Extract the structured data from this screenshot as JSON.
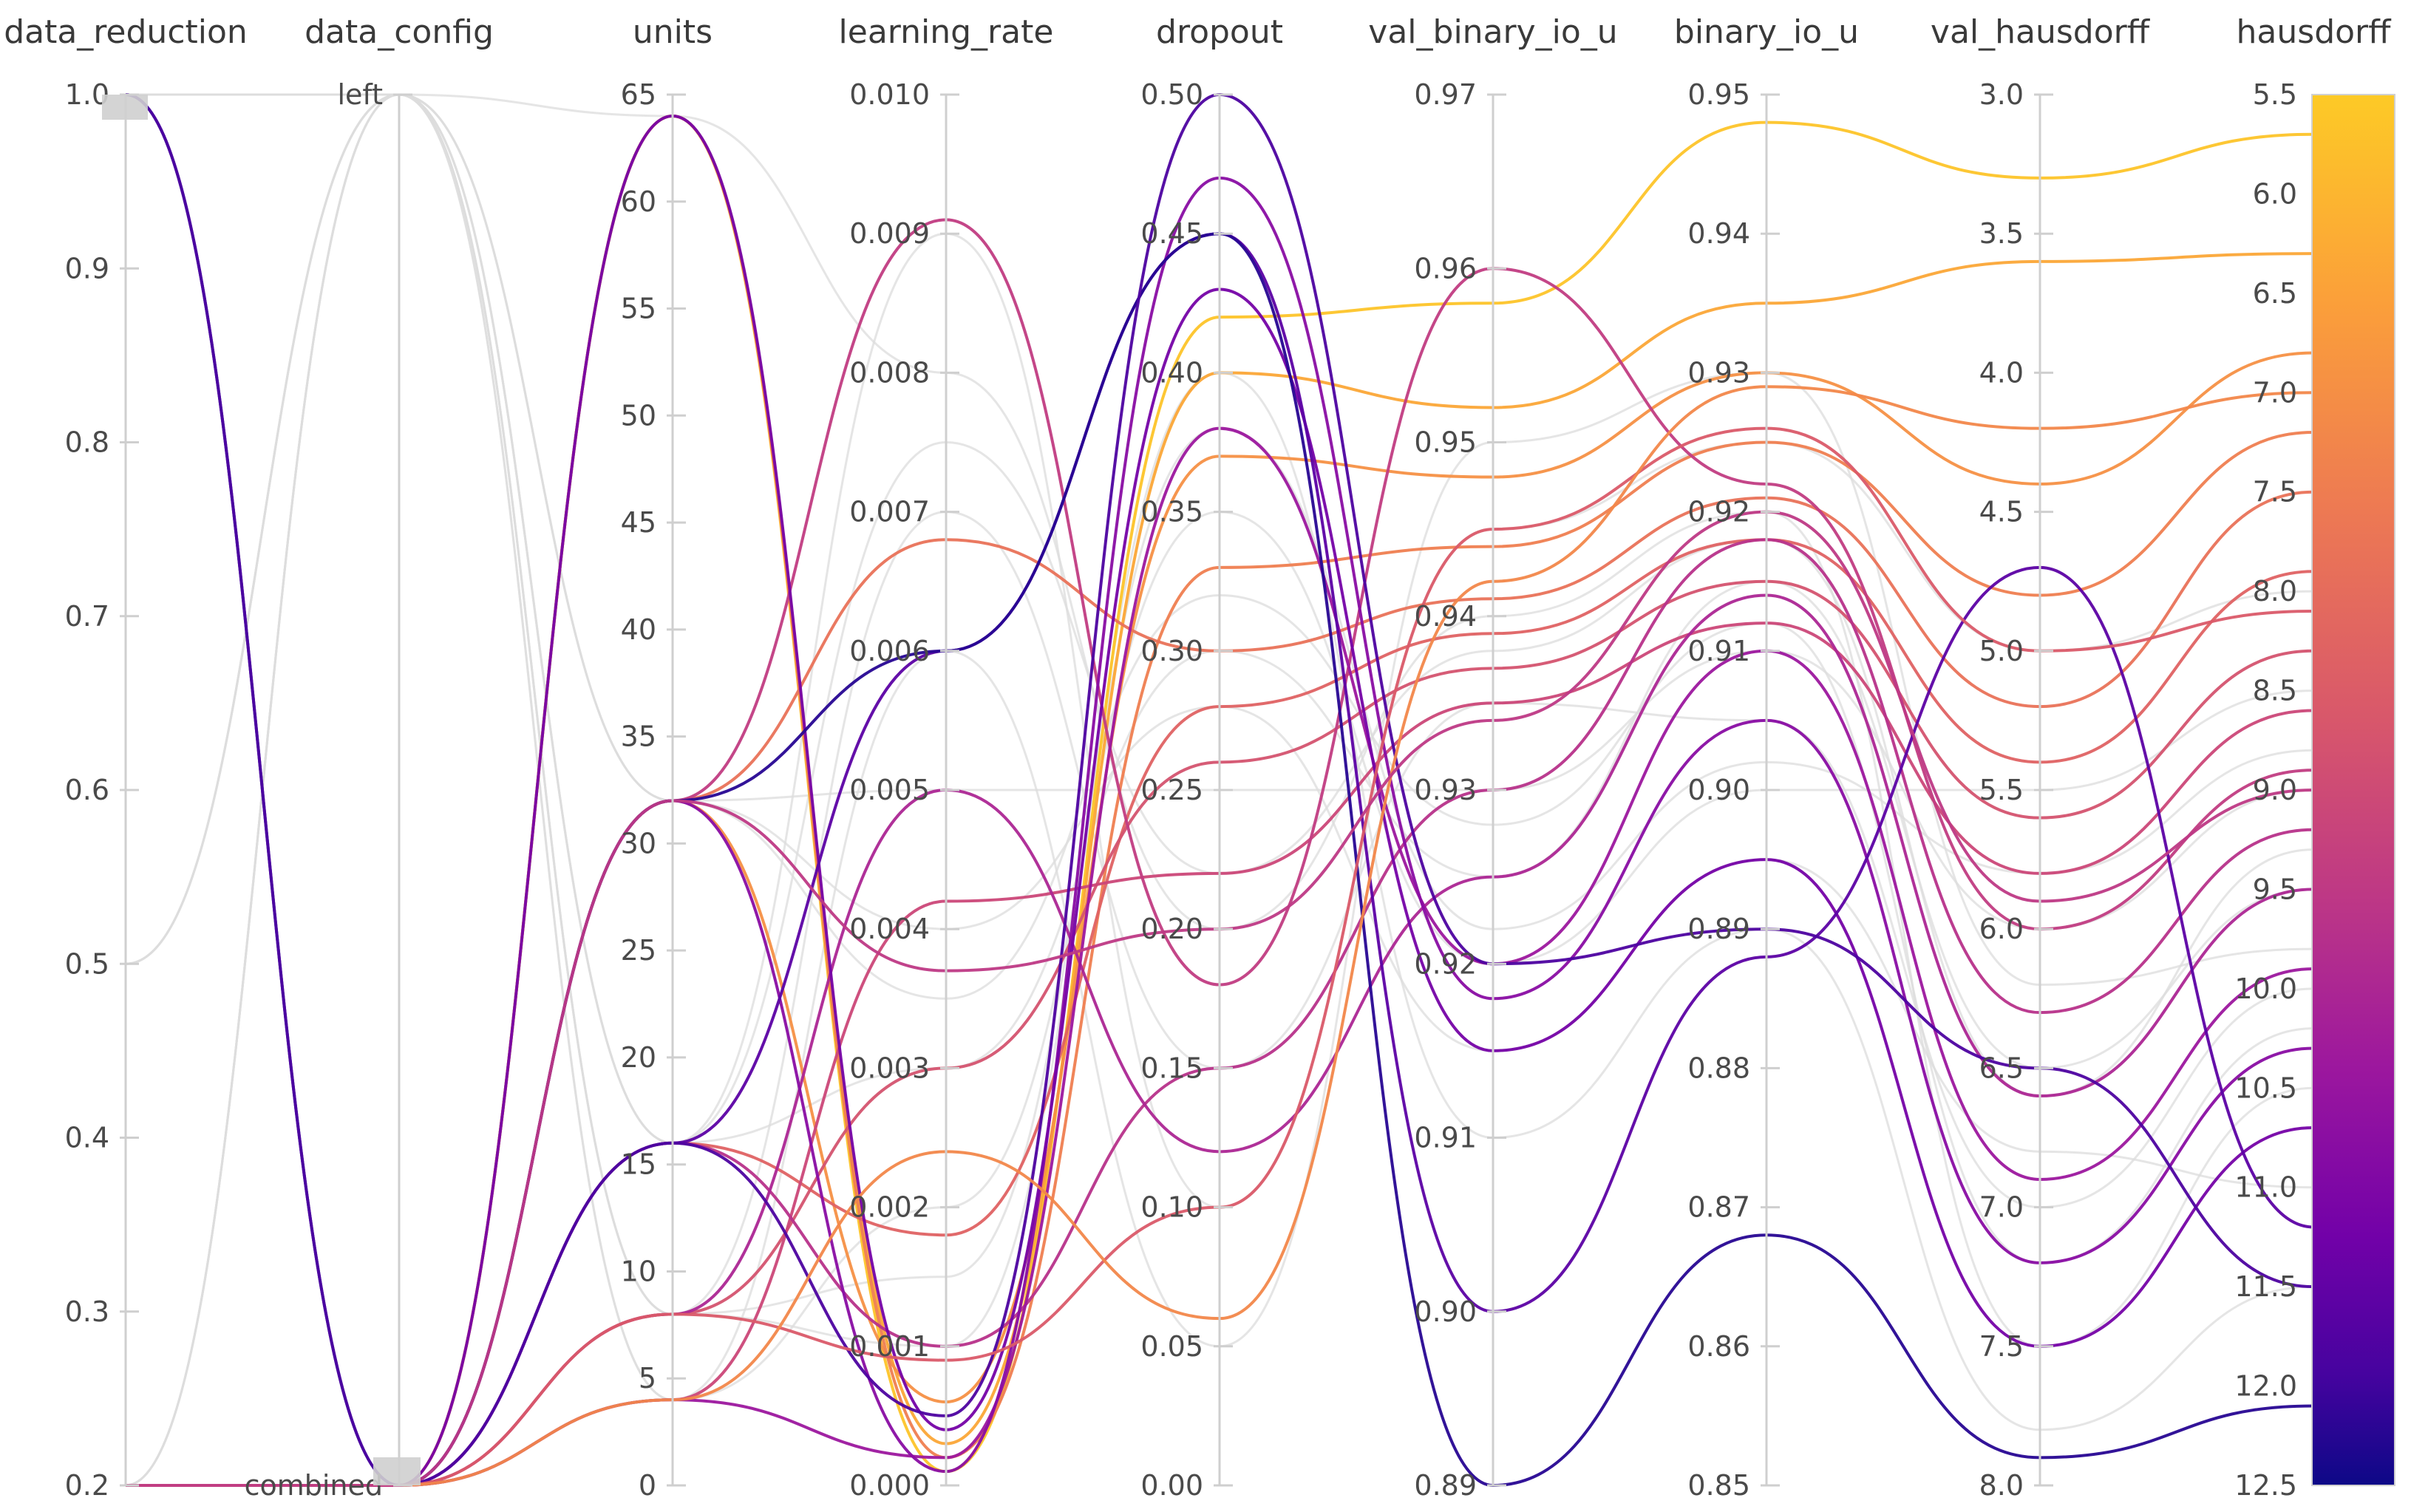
{
  "chart_data": {
    "type": "parallel-coordinates",
    "title": "",
    "color_metric": "hausdorff",
    "colorscale": [
      "#0d0887",
      "#46039f",
      "#7201a8",
      "#9c179e",
      "#bd3786",
      "#d8576b",
      "#ed7953",
      "#fb9f3a",
      "#fdca26",
      "#f0f921"
    ],
    "axes": [
      {
        "name": "data_reduction",
        "ticks": [
          "1.0",
          "0.9",
          "0.8",
          "0.7",
          "0.6",
          "0.5",
          "0.4",
          "0.3",
          "0.2"
        ],
        "range": [
          0.2,
          1.0
        ]
      },
      {
        "name": "data_config",
        "ticks": [
          "left",
          "combined"
        ],
        "categorical": true
      },
      {
        "name": "units",
        "ticks": [
          "65",
          "60",
          "55",
          "50",
          "45",
          "40",
          "35",
          "30",
          "25",
          "20",
          "15",
          "10",
          "5",
          "0"
        ],
        "range": [
          0,
          65
        ]
      },
      {
        "name": "learning_rate",
        "ticks": [
          "0.010",
          "0.009",
          "0.008",
          "0.007",
          "0.006",
          "0.005",
          "0.004",
          "0.003",
          "0.002",
          "0.001",
          "0.000"
        ],
        "range": [
          0.0,
          0.01
        ]
      },
      {
        "name": "dropout",
        "ticks": [
          "0.50",
          "0.45",
          "0.40",
          "0.35",
          "0.30",
          "0.25",
          "0.20",
          "0.15",
          "0.10",
          "0.05",
          "0.00"
        ],
        "range": [
          0.0,
          0.5
        ]
      },
      {
        "name": "val_binary_io_u",
        "ticks": [
          "0.97",
          "0.96",
          "0.95",
          "0.94",
          "0.93",
          "0.92",
          "0.91",
          "0.90",
          "0.89"
        ],
        "range": [
          0.89,
          0.97
        ]
      },
      {
        "name": "binary_io_u",
        "ticks": [
          "0.95",
          "0.94",
          "0.93",
          "0.92",
          "0.91",
          "0.90",
          "0.89",
          "0.88",
          "0.87",
          "0.86",
          "0.85"
        ],
        "range": [
          0.85,
          0.95
        ]
      },
      {
        "name": "val_hausdorff",
        "ticks": [
          "3.0",
          "3.5",
          "4.0",
          "4.5",
          "5.0",
          "5.5",
          "6.0",
          "6.5",
          "7.0",
          "7.5",
          "8.0"
        ],
        "range": [
          3.0,
          8.0
        ],
        "inverted": true
      },
      {
        "name": "hausdorff",
        "ticks": [
          "5.5",
          "6.0",
          "6.5",
          "7.0",
          "7.5",
          "8.0",
          "8.5",
          "9.0",
          "9.5",
          "10.0",
          "10.5",
          "11.0",
          "11.5",
          "12.0",
          "12.5"
        ],
        "range": [
          5.5,
          12.5
        ],
        "inverted": true
      }
    ],
    "runs": [
      {
        "data_reduction": 0.2,
        "data_config": "combined",
        "units": 64,
        "learning_rate": 0.0001,
        "dropout": 0.42,
        "val_binary_io_u": 0.958,
        "binary_io_u": 0.948,
        "val_hausdorff": 3.3,
        "hausdorff": 5.7
      },
      {
        "data_reduction": 0.2,
        "data_config": "combined",
        "units": 64,
        "learning_rate": 0.0003,
        "dropout": 0.4,
        "val_binary_io_u": 0.952,
        "binary_io_u": 0.935,
        "val_hausdorff": 3.6,
        "hausdorff": 6.3
      },
      {
        "data_reduction": 0.2,
        "data_config": "combined",
        "units": 32,
        "learning_rate": 0.0006,
        "dropout": 0.37,
        "val_binary_io_u": 0.948,
        "binary_io_u": 0.93,
        "val_hausdorff": 4.4,
        "hausdorff": 6.8
      },
      {
        "data_reduction": 0.2,
        "data_config": "combined",
        "units": 64,
        "learning_rate": 0.0002,
        "dropout": 0.33,
        "val_binary_io_u": 0.944,
        "binary_io_u": 0.925,
        "val_hausdorff": 4.8,
        "hausdorff": 7.2
      },
      {
        "data_reduction": 0.2,
        "data_config": "combined",
        "units": 32,
        "learning_rate": 0.0068,
        "dropout": 0.3,
        "val_binary_io_u": 0.941,
        "binary_io_u": 0.921,
        "val_hausdorff": 5.2,
        "hausdorff": 7.5
      },
      {
        "data_reduction": 0.2,
        "data_config": "combined",
        "units": 16,
        "learning_rate": 0.0018,
        "dropout": 0.28,
        "val_binary_io_u": 0.939,
        "binary_io_u": 0.918,
        "val_hausdorff": 5.4,
        "hausdorff": 7.9
      },
      {
        "data_reduction": 0.2,
        "data_config": "combined",
        "units": 8,
        "learning_rate": 0.003,
        "dropout": 0.26,
        "val_binary_io_u": 0.937,
        "binary_io_u": 0.915,
        "val_hausdorff": 5.6,
        "hausdorff": 8.3
      },
      {
        "data_reduction": 0.2,
        "data_config": "combined",
        "units": 4,
        "learning_rate": 0.0042,
        "dropout": 0.22,
        "val_binary_io_u": 0.935,
        "binary_io_u": 0.912,
        "val_hausdorff": 5.8,
        "hausdorff": 8.6
      },
      {
        "data_reduction": 0.2,
        "data_config": "combined",
        "units": 32,
        "learning_rate": 0.0091,
        "dropout": 0.18,
        "val_binary_io_u": 0.96,
        "binary_io_u": 0.922,
        "val_hausdorff": 6.0,
        "hausdorff": 8.9
      },
      {
        "data_reduction": 0.2,
        "data_config": "combined",
        "units": 16,
        "learning_rate": 0.001,
        "dropout": 0.15,
        "val_binary_io_u": 0.93,
        "binary_io_u": 0.918,
        "val_hausdorff": 6.3,
        "hausdorff": 9.2
      },
      {
        "data_reduction": 0.2,
        "data_config": "combined",
        "units": 8,
        "learning_rate": 0.005,
        "dropout": 0.12,
        "val_binary_io_u": 0.925,
        "binary_io_u": 0.914,
        "val_hausdorff": 6.6,
        "hausdorff": 9.5
      },
      {
        "data_reduction": 0.2,
        "data_config": "combined",
        "units": 4,
        "learning_rate": 0.0002,
        "dropout": 0.38,
        "val_binary_io_u": 0.92,
        "binary_io_u": 0.91,
        "val_hausdorff": 6.9,
        "hausdorff": 9.9
      },
      {
        "data_reduction": 0.2,
        "data_config": "combined",
        "units": 32,
        "learning_rate": 0.0001,
        "dropout": 0.47,
        "val_binary_io_u": 0.918,
        "binary_io_u": 0.905,
        "val_hausdorff": 7.2,
        "hausdorff": 10.3
      },
      {
        "data_reduction": 0.2,
        "data_config": "combined",
        "units": 64,
        "learning_rate": 0.0004,
        "dropout": 0.43,
        "val_binary_io_u": 0.915,
        "binary_io_u": 0.895,
        "val_hausdorff": 7.5,
        "hausdorff": 10.7
      },
      {
        "data_reduction": 0.2,
        "data_config": "combined",
        "units": 16,
        "learning_rate": 0.006,
        "dropout": 0.45,
        "val_binary_io_u": 0.9,
        "binary_io_u": 0.888,
        "val_hausdorff": 4.7,
        "hausdorff": 11.2
      },
      {
        "data_reduction": 1.0,
        "data_config": "combined",
        "units": 32,
        "learning_rate": 0.006,
        "dropout": 0.45,
        "val_binary_io_u": 0.89,
        "binary_io_u": 0.868,
        "val_hausdorff": 7.9,
        "hausdorff": 12.1
      },
      {
        "data_reduction": 1.0,
        "data_config": "combined",
        "units": 16,
        "learning_rate": 0.0005,
        "dropout": 0.5,
        "val_binary_io_u": 0.92,
        "binary_io_u": 0.89,
        "val_hausdorff": 6.5,
        "hausdorff": 11.5
      },
      {
        "data_reduction": 0.2,
        "data_config": "combined",
        "units": 8,
        "learning_rate": 0.0009,
        "dropout": 0.1,
        "val_binary_io_u": 0.945,
        "binary_io_u": 0.926,
        "val_hausdorff": 5.0,
        "hausdorff": 8.1
      },
      {
        "data_reduction": 0.2,
        "data_config": "combined",
        "units": 4,
        "learning_rate": 0.0024,
        "dropout": 0.06,
        "val_binary_io_u": 0.942,
        "binary_io_u": 0.929,
        "val_hausdorff": 4.2,
        "hausdorff": 7.0
      },
      {
        "data_reduction": 0.2,
        "data_config": "combined",
        "units": 32,
        "learning_rate": 0.0037,
        "dropout": 0.2,
        "val_binary_io_u": 0.934,
        "binary_io_u": 0.92,
        "val_hausdorff": 5.9,
        "hausdorff": 9.0
      }
    ],
    "gray_runs": [
      {
        "data_reduction": 0.5,
        "data_config": "left",
        "units": 32,
        "learning_rate": 0.005,
        "dropout": 0.25,
        "val_binary_io_u": 0.93,
        "binary_io_u": 0.91,
        "val_hausdorff": 6.0,
        "hausdorff": 9.0
      },
      {
        "data_reduction": 1.0,
        "data_config": "left",
        "units": 16,
        "learning_rate": 0.003,
        "dropout": 0.3,
        "val_binary_io_u": 0.925,
        "binary_io_u": 0.915,
        "val_hausdorff": 6.5,
        "hausdorff": 9.5
      },
      {
        "data_reduction": 0.2,
        "data_config": "left",
        "units": 8,
        "learning_rate": 0.007,
        "dropout": 0.15,
        "val_binary_io_u": 0.935,
        "binary_io_u": 0.905,
        "val_hausdorff": 7.0,
        "hausdorff": 10.0
      },
      {
        "data_reduction": 0.5,
        "data_config": "left",
        "units": 4,
        "learning_rate": 0.002,
        "dropout": 0.35,
        "val_binary_io_u": 0.92,
        "binary_io_u": 0.9,
        "val_hausdorff": 5.5,
        "hausdorff": 8.5
      },
      {
        "data_reduction": 1.0,
        "data_config": "left",
        "units": 64,
        "learning_rate": 0.008,
        "dropout": 0.2,
        "val_binary_io_u": 0.94,
        "binary_io_u": 0.92,
        "val_hausdorff": 7.5,
        "hausdorff": 10.5
      },
      {
        "data_reduction": 0.2,
        "data_config": "left",
        "units": 32,
        "learning_rate": 0.004,
        "dropout": 0.28,
        "val_binary_io_u": 0.915,
        "binary_io_u": 0.895,
        "val_hausdorff": 6.8,
        "hausdorff": 11.0
      },
      {
        "data_reduction": 0.5,
        "data_config": "left",
        "units": 16,
        "learning_rate": 0.009,
        "dropout": 0.1,
        "val_binary_io_u": 0.945,
        "binary_io_u": 0.925,
        "val_hausdorff": 5.0,
        "hausdorff": 8.0
      },
      {
        "data_reduction": 1.0,
        "data_config": "left",
        "units": 8,
        "learning_rate": 0.001,
        "dropout": 0.4,
        "val_binary_io_u": 0.91,
        "binary_io_u": 0.89,
        "val_hausdorff": 7.8,
        "hausdorff": 11.5
      },
      {
        "data_reduction": 0.2,
        "data_config": "left",
        "units": 4,
        "learning_rate": 0.006,
        "dropout": 0.05,
        "val_binary_io_u": 0.95,
        "binary_io_u": 0.93,
        "val_hausdorff": 6.2,
        "hausdorff": 9.8
      },
      {
        "data_reduction": 0.5,
        "data_config": "left",
        "units": 32,
        "learning_rate": 0.0035,
        "dropout": 0.32,
        "val_binary_io_u": 0.928,
        "binary_io_u": 0.912,
        "val_hausdorff": 7.2,
        "hausdorff": 10.2
      },
      {
        "data_reduction": 1.0,
        "data_config": "left",
        "units": 16,
        "learning_rate": 0.0075,
        "dropout": 0.22,
        "val_binary_io_u": 0.938,
        "binary_io_u": 0.918,
        "val_hausdorff": 6.6,
        "hausdorff": 9.3
      },
      {
        "data_reduction": 0.2,
        "data_config": "left",
        "units": 8,
        "learning_rate": 0.0015,
        "dropout": 0.38,
        "val_binary_io_u": 0.922,
        "binary_io_u": 0.902,
        "val_hausdorff": 5.8,
        "hausdorff": 8.8
      }
    ]
  }
}
